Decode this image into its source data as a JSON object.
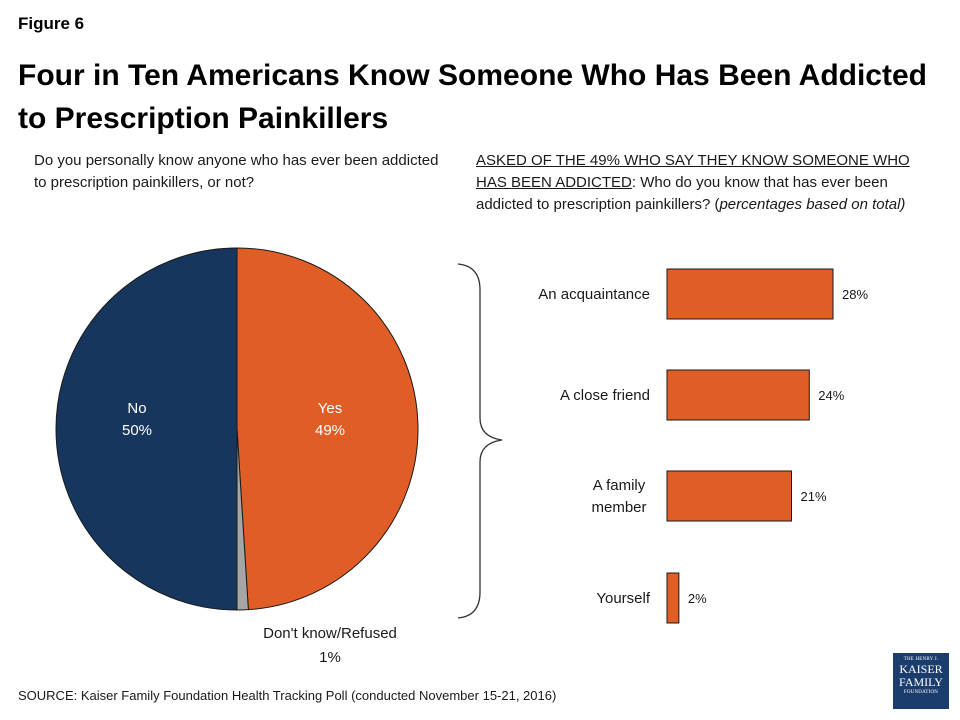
{
  "figure_label": "Figure 6",
  "title": "Four in Ten Americans Know Someone Who Has Been Addicted to Prescription Painkillers",
  "left_question": "Do you personally know anyone who has ever been addicted to prescription painkillers, or not?",
  "right_question": {
    "underlined": "ASKED OF THE 49% WHO SAY THEY KNOW SOMEONE WHO HAS BEEN ADDICTED",
    "text": ": Who do you know that has ever been addicted to prescription painkillers? (",
    "italic": "percentages based on total)"
  },
  "source": "SOURCE: Kaiser Family Foundation Health Tracking Poll (conducted November 15-21, 2016)",
  "logo": {
    "line1": "THE HENRY J.",
    "line2": "KAISER",
    "line3": "FAMILY",
    "line4": "FOUNDATION"
  },
  "colors": {
    "orange": "#e05d26",
    "navy": "#17365d",
    "gray": "#a6a6a6"
  },
  "chart_data": [
    {
      "type": "pie",
      "slices": [
        {
          "name": "Yes",
          "label": "49%",
          "value": 49,
          "color": "#e05d26"
        },
        {
          "name": "Don't know/Refused",
          "label": "1%",
          "value": 1,
          "color": "#a6a6a6"
        },
        {
          "name": "No",
          "label": "50%",
          "value": 50,
          "color": "#17365d"
        }
      ]
    },
    {
      "type": "bar",
      "orientation": "horizontal",
      "categories": [
        "An acquaintance",
        "A close friend",
        "A family member",
        "Yourself"
      ],
      "values": [
        28,
        24,
        21,
        2
      ],
      "labels": [
        "28%",
        "24%",
        "21%",
        "2%"
      ],
      "color": "#e05d26"
    }
  ]
}
